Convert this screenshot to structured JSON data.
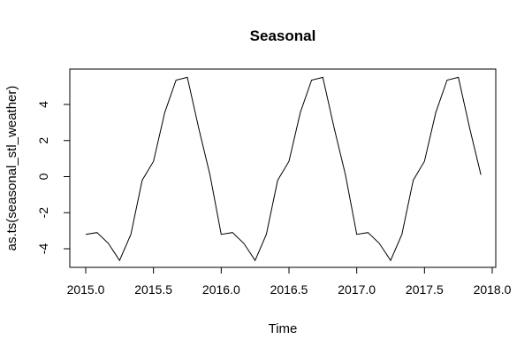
{
  "chart_data": {
    "type": "line",
    "title": "Seasonal",
    "xlabel": "Time",
    "ylabel": "as.ts(seasonal_stl_weather)",
    "xlim": [
      2015.0,
      2018.0
    ],
    "ylim": [
      -4.7,
      5.6
    ],
    "xticks": [
      2015.0,
      2015.5,
      2016.0,
      2016.5,
      2017.0,
      2017.5,
      2018.0
    ],
    "xtick_labels": [
      "2015.0",
      "2015.5",
      "2016.0",
      "2016.5",
      "2017.0",
      "2017.5",
      "2018.0"
    ],
    "yticks": [
      -4,
      -2,
      0,
      2,
      4
    ],
    "ytick_labels": [
      "-4",
      "-2",
      "0",
      "2",
      "4"
    ],
    "grid": false,
    "series": [
      {
        "x": [
          2015.0,
          2015.0833,
          2015.1667,
          2015.25,
          2015.3333,
          2015.4167,
          2015.5,
          2015.5833,
          2015.6667,
          2015.75,
          2015.8333,
          2015.9167,
          2016.0,
          2016.0833,
          2016.1667,
          2016.25,
          2016.3333,
          2016.4167,
          2016.5,
          2016.5833,
          2016.6667,
          2016.75,
          2016.8333,
          2016.9167,
          2017.0,
          2017.0833,
          2017.1667,
          2017.25,
          2017.3333,
          2017.4167,
          2017.5,
          2017.5833,
          2017.6667,
          2017.75,
          2017.8333,
          2017.9167
        ],
        "y": [
          -3.2,
          -3.1,
          -3.7,
          -4.65,
          -3.2,
          -0.2,
          0.85,
          3.55,
          5.35,
          5.5,
          2.7,
          0.1,
          -3.2,
          -3.1,
          -3.7,
          -4.65,
          -3.2,
          -0.2,
          0.85,
          3.55,
          5.35,
          5.5,
          2.7,
          0.1,
          -3.2,
          -3.1,
          -3.7,
          -4.65,
          -3.2,
          -0.2,
          0.85,
          3.55,
          5.35,
          5.5,
          2.7,
          0.1
        ],
        "color": "#000000"
      }
    ]
  }
}
